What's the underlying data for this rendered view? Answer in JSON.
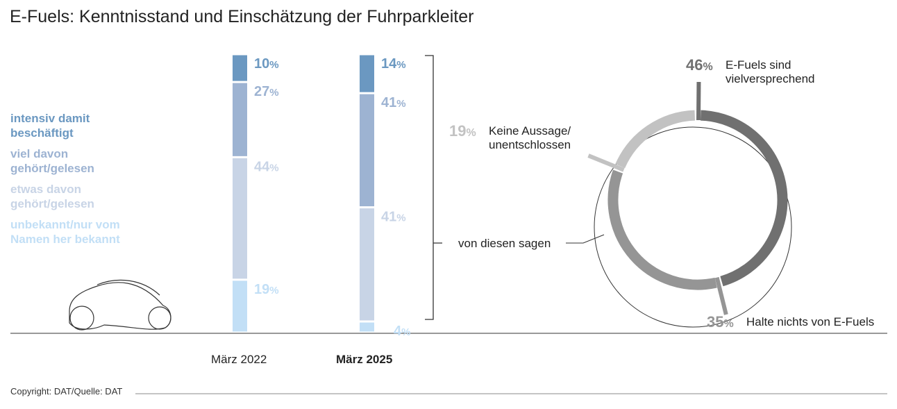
{
  "title": "E-Fuels: Kenntnisstand und Einschätzung der Fuhrparkleiter",
  "copyright": "Copyright: DAT/Quelle: DAT",
  "colors": {
    "intensiv": "#6b98c1",
    "viel": "#9db3d2",
    "etwas": "#c8d4e6",
    "unbekannt": "#c2dff6",
    "ring_promising": "#707070",
    "ring_nothing": "#959595",
    "ring_undecided": "#c2c2c2"
  },
  "chart_data": [
    {
      "type": "bar",
      "stacked": true,
      "categories": [
        "März 2022",
        "März 2025"
      ],
      "series": [
        {
          "name": "unbekannt/nur vom Namen her bekannt",
          "values": [
            19,
            4
          ]
        },
        {
          "name": "etwas davon gehört/gelesen",
          "values": [
            44,
            41
          ]
        },
        {
          "name": "viel davon gehört/gelesen",
          "values": [
            27,
            41
          ]
        },
        {
          "name": "intensiv damit beschäftigt",
          "values": [
            10,
            14
          ]
        }
      ],
      "ylim": [
        0,
        100
      ],
      "legend": "left"
    },
    {
      "type": "pie",
      "variant": "donut",
      "annotation": "von diesen sagen",
      "slices": [
        {
          "label": "E-Fuels sind vielversprechend",
          "value": 46
        },
        {
          "label": "Halte nichts von E-Fuels",
          "value": 35
        },
        {
          "label": "Keine Aussage/ unentschlossen",
          "value": 19
        }
      ]
    }
  ]
}
